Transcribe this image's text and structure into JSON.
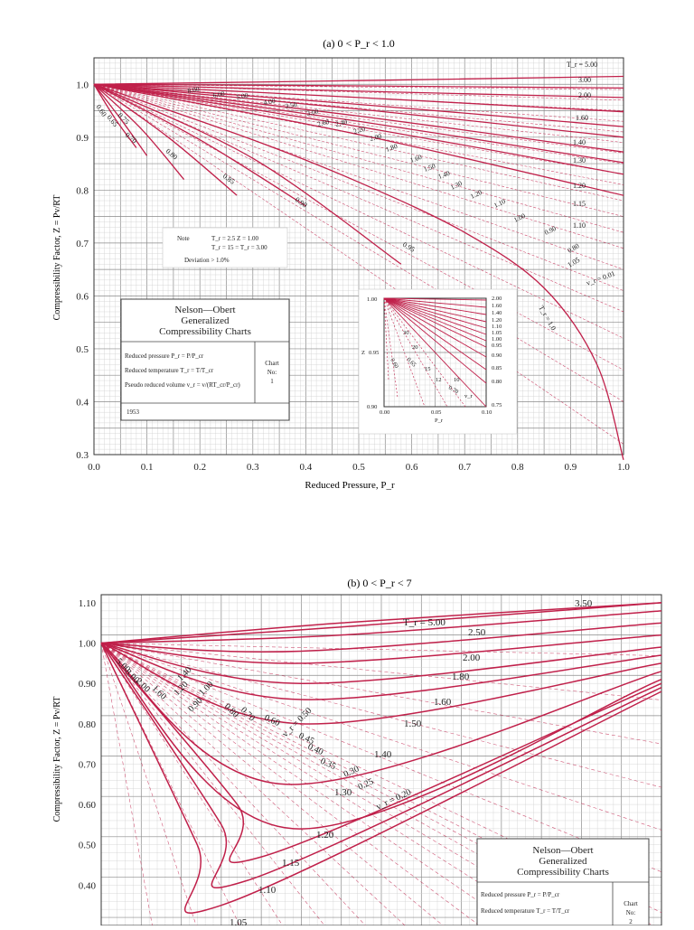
{
  "colors": {
    "curve": "#c0204a",
    "grid_minor": "#cfcfcf",
    "grid_major": "#8a8a8a",
    "axis": "#333333",
    "background": "#ffffff"
  },
  "chart_data": [
    {
      "type": "line",
      "title": "(a) 0 < P_r < 1.0",
      "xlabel": "Reduced Pressure, P_r",
      "ylabel": "Compressibility Factor, Z = Pv/RT",
      "xlim": [
        0.0,
        1.0
      ],
      "ylim": [
        0.3,
        1.05
      ],
      "xticks": [
        "0.0",
        "0.1",
        "0.2",
        "0.3",
        "0.4",
        "0.5",
        "0.6",
        "0.7",
        "0.8",
        "0.9",
        "1.0"
      ],
      "yticks": [
        "0.3",
        "0.4",
        "0.5",
        "0.6",
        "0.7",
        "0.8",
        "0.9",
        "1.0"
      ],
      "grid": true,
      "series": [
        {
          "name": "5.00",
          "x": [
            0,
            0.5,
            1.0
          ],
          "y": [
            1.0,
            1.007,
            1.015
          ]
        },
        {
          "name": "3.00",
          "x": [
            0,
            0.5,
            1.0
          ],
          "y": [
            1.0,
            0.997,
            0.993
          ]
        },
        {
          "name": "2.00",
          "x": [
            0,
            0.5,
            1.0
          ],
          "y": [
            1.0,
            0.987,
            0.975
          ]
        },
        {
          "name": "1.60",
          "x": [
            0,
            0.5,
            1.0
          ],
          "y": [
            1.0,
            0.975,
            0.948
          ]
        },
        {
          "name": "1.40",
          "x": [
            0,
            0.5,
            1.0
          ],
          "y": [
            1.0,
            0.962,
            0.92
          ]
        },
        {
          "name": "1.30",
          "x": [
            0,
            0.5,
            1.0
          ],
          "y": [
            1.0,
            0.953,
            0.9
          ]
        },
        {
          "name": "1.20",
          "x": [
            0,
            0.5,
            1.0
          ],
          "y": [
            1.0,
            0.94,
            0.872
          ]
        },
        {
          "name": "1.15",
          "x": [
            0,
            0.5,
            1.0
          ],
          "y": [
            1.0,
            0.93,
            0.852
          ]
        },
        {
          "name": "1.10",
          "x": [
            0,
            0.5,
            1.0
          ],
          "y": [
            1.0,
            0.92,
            0.83
          ]
        },
        {
          "name": "1.05",
          "x": [
            0,
            0.5,
            1.0
          ],
          "y": [
            1.0,
            0.905,
            0.79
          ]
        },
        {
          "name": "1.0",
          "x": [
            0,
            0.3,
            0.5,
            0.7,
            0.85,
            0.95,
            1.0
          ],
          "y": [
            1.0,
            0.895,
            0.815,
            0.72,
            0.615,
            0.47,
            0.29
          ]
        },
        {
          "name": "0.95",
          "x": [
            0,
            0.3,
            0.58
          ],
          "y": [
            1.0,
            0.86,
            0.66
          ]
        },
        {
          "name": "0.90",
          "x": [
            0,
            0.2,
            0.4
          ],
          "y": [
            1.0,
            0.895,
            0.77
          ]
        },
        {
          "name": "0.85",
          "x": [
            0,
            0.14,
            0.27
          ],
          "y": [
            1.0,
            0.9,
            0.79
          ]
        },
        {
          "name": "0.80",
          "x": [
            0,
            0.09,
            0.17
          ],
          "y": [
            1.0,
            0.915,
            0.82
          ]
        },
        {
          "name": "0.75",
          "x": [
            0,
            0.05,
            0.1
          ],
          "y": [
            1.0,
            0.935,
            0.865
          ]
        },
        {
          "name": "0.70",
          "x": [
            0,
            0.04,
            0.08
          ],
          "y": [
            1.0,
            0.935,
            0.88
          ]
        }
      ],
      "labels": {
        "tr_5": "T_r = 5.00",
        "tr_curve_labels": [
          "3.00",
          "2.00",
          "1.60",
          "1.40",
          "1.30",
          "1.20",
          "1.15",
          "1.10",
          "1.05"
        ],
        "tr_1": "T_r = 1.0",
        "low_tr": [
          "0.95",
          "0.90",
          "0.85",
          "0.80",
          "0.75",
          "0.70",
          "0.65",
          "0.60"
        ],
        "vr_labels": [
          "8.00",
          "6.00",
          "5.00",
          "4.00",
          "3.50",
          "3.00",
          "2.60",
          "2.40",
          "2.20",
          "2.00",
          "1.80",
          "1.60",
          "1.50",
          "1.40",
          "1.30",
          "1.20",
          "1.10",
          "1.00",
          "0.90",
          "0.80"
        ],
        "vr_end": "v_r = 0.01"
      },
      "note": {
        "label": "Note",
        "line1": "T_r = 2.5    Z = 1.00",
        "line2": "T_r = 15  =  T_r = 3.00",
        "line3": "Deviation > 1.0%"
      },
      "info_box": {
        "title_1": "Nelson—Obert",
        "title_2": "Generalized",
        "title_3": "Compressibility Charts",
        "row_1": "Reduced pressure P_r = P/P_cr",
        "row_2": "Reduced temperature T_r = T/T_cr",
        "row_3": "Pseudo reduced volume v_r = v/(RT_cr/P_cr)",
        "chart_label": "Chart",
        "chart_no_label": "No:",
        "chart_no": "1",
        "year": "1953"
      },
      "inset": {
        "ylabel": "Z",
        "yticks_left": [
          "1.00",
          "0.95",
          "0.90"
        ],
        "xticks": [
          "0.00",
          "0.05",
          "0.10"
        ],
        "xlabel": "P_r",
        "right_labels": [
          "2.00",
          "1.60",
          "1.40",
          "1.20",
          "1.10",
          "1.05",
          "1.00",
          "0.95",
          "0.90",
          "0.85",
          "0.80",
          "0.75"
        ],
        "inner_labels": [
          "30",
          "20",
          "15",
          "12",
          "10",
          "0.60",
          "0.65",
          "0.70",
          "v_r"
        ]
      }
    },
    {
      "type": "line",
      "title": "(b) 0 < P_r < 7",
      "ylabel": "Compressibility Factor, Z = Pv/RT",
      "xlim": [
        0,
        7
      ],
      "ylim": [
        0.3,
        1.12
      ],
      "yticks": [
        "0.40",
        "0.50",
        "0.60",
        "0.70",
        "0.80",
        "0.90",
        "1.00",
        "1.10"
      ],
      "grid": true,
      "series": [
        {
          "name": "5.00",
          "x": [
            0,
            3,
            7
          ],
          "y": [
            1.0,
            1.05,
            1.1
          ]
        },
        {
          "name": "3.50",
          "x": [
            0,
            3,
            7
          ],
          "y": [
            1.0,
            1.04,
            1.1
          ]
        },
        {
          "name": "2.50",
          "x": [
            0,
            3,
            7
          ],
          "y": [
            1.0,
            1.02,
            1.08
          ]
        },
        {
          "name": "2.00",
          "x": [
            0,
            2.5,
            7
          ],
          "y": [
            1.0,
            0.98,
            1.05
          ]
        },
        {
          "name": "1.80",
          "x": [
            0,
            2.5,
            7
          ],
          "y": [
            1.0,
            0.95,
            1.02
          ]
        },
        {
          "name": "1.60",
          "x": [
            0,
            2.5,
            7
          ],
          "y": [
            1.0,
            0.9,
            0.99
          ]
        },
        {
          "name": "1.50",
          "x": [
            0,
            2.5,
            7
          ],
          "y": [
            1.0,
            0.86,
            0.97
          ]
        },
        {
          "name": "1.40",
          "x": [
            0,
            2.5,
            7
          ],
          "y": [
            1.0,
            0.8,
            0.95
          ]
        },
        {
          "name": "1.30",
          "x": [
            0,
            2.3,
            7
          ],
          "y": [
            1.0,
            0.65,
            0.93
          ]
        },
        {
          "name": "1.20",
          "x": [
            0,
            2.4,
            7
          ],
          "y": [
            1.0,
            0.54,
            0.91
          ]
        },
        {
          "name": "1.15",
          "x": [
            0,
            1.7,
            2.0,
            7
          ],
          "y": [
            1.0,
            0.6,
            0.47,
            0.9
          ]
        },
        {
          "name": "1.10",
          "x": [
            0,
            1.5,
            1.8,
            7
          ],
          "y": [
            1.0,
            0.55,
            0.41,
            0.89
          ]
        },
        {
          "name": "1.05",
          "x": [
            0,
            1.2,
            1.5,
            7
          ],
          "y": [
            1.0,
            0.5,
            0.35,
            0.88
          ]
        }
      ],
      "labels": {
        "tr_5": "T_r = 5.00",
        "tr_curve_labels": [
          "3.50",
          "2.50",
          "2.00",
          "1.80",
          "1.60",
          "1.50",
          "1.40",
          "1.30",
          "1.20",
          "1.15",
          "1.10",
          "1.05"
        ],
        "vr_labels": [
          "5.00",
          "3.00",
          "2.00",
          "1.60",
          "1.40",
          "1.20",
          "1.00",
          "0.90",
          "0.80",
          "0.70",
          "0.60",
          "0.50",
          "0.45",
          "0.40",
          "0.35",
          "0.30",
          "0.25"
        ],
        "vr_020": "v_r = 0.20",
        "vr_050": "v_r = 0.50"
      },
      "info_box": {
        "title_1": "Nelson—Obert",
        "title_2": "Generalized",
        "title_3": "Compressibility Charts",
        "row_1": "Reduced pressure P_r = P/P_cr",
        "row_2": "Reduced temperature T_r = T/T_cr",
        "chart_label": "Chart",
        "chart_no_label": "No:",
        "chart_no": "2"
      }
    }
  ]
}
